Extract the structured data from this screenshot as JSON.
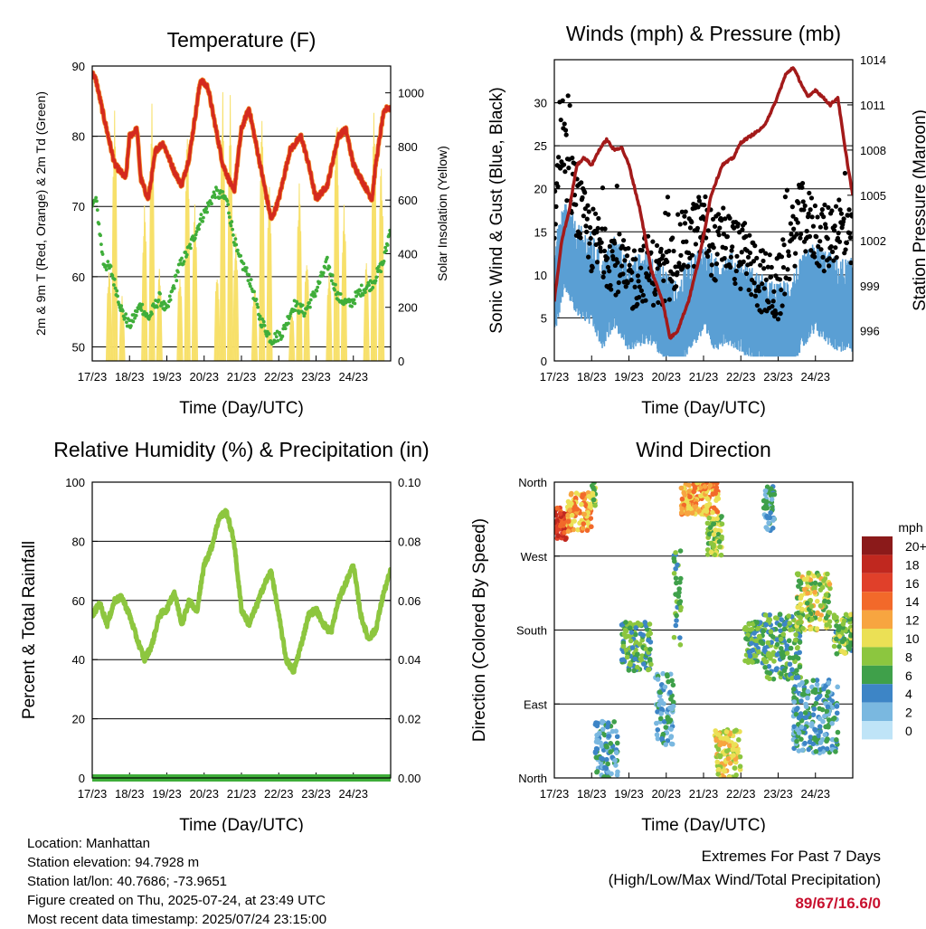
{
  "x_ticks": [
    "17/23",
    "18/23",
    "19/23",
    "20/23",
    "21/23",
    "22/23",
    "23/23",
    "24/23"
  ],
  "x_label": "Time (Day/UTC)",
  "chart_data": [
    {
      "type": "line",
      "title": "Temperature (F)",
      "xlabel": "Time (Day/UTC)",
      "ylabel": "2m & 9m T (Red, Orange) & 2m Td (Green)",
      "y2label": "Solar Insolation (Yellow)",
      "ylim": [
        48,
        90
      ],
      "y_ticks": [
        50,
        60,
        70,
        80,
        90
      ],
      "y2lim": [
        0,
        1100
      ],
      "y2_ticks": [
        0,
        200,
        400,
        600,
        800,
        1000
      ],
      "x_ticks": [
        "17/23",
        "18/23",
        "19/23",
        "20/23",
        "21/23",
        "22/23",
        "23/23",
        "24/23"
      ],
      "grid": true,
      "colors": {
        "temp": "#d42a1e",
        "temp9m": "#f28c28",
        "dewpoint": "#3fae3a",
        "solar": "#f7e06a"
      },
      "series": [
        {
          "name": "2m T",
          "x": [
            0,
            0.1,
            0.3,
            0.6,
            0.9,
            1.0,
            1.2,
            1.3,
            1.5,
            1.7,
            1.9,
            2.2,
            2.4,
            2.6,
            2.9,
            3.1,
            3.5,
            3.8,
            4.0,
            4.2,
            4.5,
            4.8,
            5.0,
            5.3,
            5.6,
            5.8,
            6.0,
            6.3,
            6.6,
            6.8,
            7.0,
            7.3,
            7.5,
            7.6,
            7.8,
            7.9,
            8.0
          ],
          "values": [
            89,
            88,
            83,
            76,
            74,
            80,
            81,
            74,
            71,
            78,
            79,
            75,
            73,
            77,
            88,
            87,
            76,
            72,
            81,
            84,
            76,
            68,
            71,
            78,
            80,
            76,
            71,
            73,
            80,
            81,
            76,
            73,
            71,
            76,
            83,
            84,
            84
          ]
        },
        {
          "name": "2m Td",
          "x": [
            0,
            0.1,
            0.3,
            0.5,
            0.8,
            1.0,
            1.3,
            1.5,
            1.8,
            2.0,
            2.3,
            2.6,
            2.9,
            3.1,
            3.3,
            3.6,
            3.9,
            4.2,
            4.5,
            4.8,
            5.1,
            5.4,
            5.7,
            6.0,
            6.3,
            6.6,
            6.9,
            7.2,
            7.5,
            7.8,
            8.0
          ],
          "values": [
            70,
            71,
            62,
            61,
            55,
            53,
            56,
            54,
            57,
            55,
            61,
            64,
            68,
            70,
            72,
            71,
            63,
            60,
            54,
            51,
            52,
            56,
            55,
            58,
            62,
            57,
            56,
            58,
            59,
            62,
            67
          ]
        },
        {
          "name": "Solar Insolation",
          "axis": "y2",
          "peaks_x": [
            0.45,
            0.6,
            0.8,
            1.4,
            1.6,
            1.8,
            2.35,
            2.55,
            2.75,
            3.35,
            3.5,
            3.7,
            3.85,
            4.35,
            4.55,
            4.75,
            5.35,
            5.55,
            5.75,
            6.35,
            6.55,
            6.75,
            7.35,
            7.55,
            7.75
          ],
          "peaks_values": [
            350,
            950,
            250,
            600,
            1000,
            350,
            350,
            900,
            600,
            350,
            1050,
            1000,
            500,
            300,
            950,
            700,
            200,
            700,
            400,
            350,
            1000,
            600,
            400,
            950,
            800
          ]
        }
      ]
    },
    {
      "type": "scatter",
      "title": "Winds (mph) & Pressure (mb)",
      "xlabel": "Time (Day/UTC)",
      "ylabel": "Sonic Wind & Gust (Blue, Black)",
      "y2label": "Station Pressure (Maroon)",
      "ylim": [
        0,
        35
      ],
      "y_ticks": [
        0,
        5,
        10,
        15,
        20,
        25,
        30
      ],
      "y2lim": [
        994,
        1014
      ],
      "y2_ticks": [
        996,
        999,
        1002,
        1005,
        1008,
        1011,
        1014
      ],
      "x_ticks": [
        "17/23",
        "18/23",
        "19/23",
        "20/23",
        "21/23",
        "22/23",
        "23/23",
        "24/23"
      ],
      "grid": true,
      "colors": {
        "wind": "#5a9fd4",
        "gust": "#000000",
        "pressure": "#a31a1a"
      },
      "series": [
        {
          "name": "Sonic Wind",
          "x": [
            0,
            0.3,
            0.6,
            1.0,
            1.3,
            1.6,
            2.0,
            2.5,
            3.0,
            3.3,
            3.6,
            4.0,
            4.3,
            4.6,
            5.0,
            5.3,
            5.6,
            6.0,
            6.3,
            6.6,
            7.0,
            7.3,
            7.6,
            8.0
          ],
          "values": [
            8,
            13,
            10,
            9,
            6,
            9,
            6,
            7,
            5,
            3,
            6,
            8,
            6,
            7,
            6,
            5,
            4,
            3,
            4,
            6,
            8,
            7,
            6,
            6
          ]
        },
        {
          "name": "Gust",
          "x": [
            0,
            0.2,
            0.4,
            0.7,
            1.0,
            1.3,
            1.6,
            2.0,
            2.4,
            2.8,
            3.0,
            3.3,
            3.6,
            4.0,
            4.3,
            4.6,
            5.0,
            5.3,
            5.6,
            6.0,
            6.3,
            6.6,
            7.0,
            7.3,
            7.6,
            8.0
          ],
          "values": [
            17,
            26,
            21,
            17,
            14,
            13,
            12,
            9,
            11,
            10,
            9,
            13,
            14,
            16,
            13,
            14,
            12,
            11,
            9,
            8,
            13,
            17,
            15,
            14,
            16,
            13
          ]
        },
        {
          "name": "Station Pressure",
          "axis": "y2",
          "x": [
            0,
            0.2,
            0.4,
            0.6,
            0.8,
            1.0,
            1.2,
            1.4,
            1.6,
            1.8,
            2.0,
            2.3,
            2.6,
            2.9,
            3.1,
            3.3,
            3.6,
            3.9,
            4.2,
            4.5,
            4.8,
            5.0,
            5.3,
            5.6,
            5.9,
            6.2,
            6.4,
            6.6,
            6.8,
            7.0,
            7.2,
            7.4,
            7.6,
            7.8,
            8.0
          ],
          "values": [
            998,
            1002,
            1004,
            1007,
            1007.5,
            1007,
            1008,
            1008.7,
            1008,
            1008.2,
            1007,
            1004,
            1000,
            998,
            995.5,
            996,
            998,
            1001,
            1005,
            1007,
            1007.5,
            1008.5,
            1009,
            1009.5,
            1011,
            1013,
            1013.5,
            1012.5,
            1011.5,
            1012,
            1011.5,
            1011,
            1011.5,
            1008,
            1005
          ]
        }
      ]
    },
    {
      "type": "line",
      "title": "Relative Humidity (%) & Precipitation (in)",
      "xlabel": "Time (Day/UTC)",
      "ylabel": "Percent & Total Rainfall",
      "ylim": [
        0,
        100
      ],
      "y_ticks": [
        0,
        20,
        40,
        60,
        80,
        100
      ],
      "y2lim": [
        0,
        0.1
      ],
      "y2_ticks": [
        "0.00",
        "0.02",
        "0.04",
        "0.06",
        "0.08",
        "0.10"
      ],
      "x_ticks": [
        "17/23",
        "18/23",
        "19/23",
        "20/23",
        "21/23",
        "22/23",
        "23/23",
        "24/23"
      ],
      "grid": true,
      "colors": {
        "rh": "#8dc63f",
        "precip": "#3fae3a"
      },
      "series": [
        {
          "name": "Relative Humidity",
          "x": [
            0,
            0.2,
            0.4,
            0.6,
            0.8,
            1.0,
            1.2,
            1.4,
            1.6,
            1.8,
            2.0,
            2.2,
            2.4,
            2.6,
            2.8,
            3.0,
            3.2,
            3.4,
            3.6,
            3.8,
            4.0,
            4.2,
            4.4,
            4.6,
            4.8,
            5.0,
            5.2,
            5.4,
            5.6,
            5.8,
            6.0,
            6.2,
            6.4,
            6.6,
            6.8,
            7.0,
            7.2,
            7.4,
            7.6,
            7.8,
            8.0
          ],
          "values": [
            55,
            59,
            52,
            60,
            61,
            55,
            47,
            40,
            45,
            55,
            57,
            63,
            52,
            60,
            56,
            72,
            78,
            88,
            90,
            80,
            57,
            52,
            58,
            65,
            70,
            55,
            40,
            36,
            45,
            55,
            57,
            52,
            49,
            60,
            66,
            72,
            55,
            47,
            50,
            62,
            70
          ]
        },
        {
          "name": "Total Precipitation",
          "axis": "y2",
          "x": [
            0,
            8
          ],
          "values": [
            0,
            0
          ]
        }
      ]
    },
    {
      "type": "scatter",
      "title": "Wind Direction",
      "xlabel": "Time (Day/UTC)",
      "ylabel": "Direction (Colored By Speed)",
      "ylim": [
        0,
        360
      ],
      "y_ticks": [
        "North",
        "East",
        "South",
        "West",
        "North"
      ],
      "x_ticks": [
        "17/23",
        "18/23",
        "19/23",
        "20/23",
        "21/23",
        "22/23",
        "23/23",
        "24/23"
      ],
      "legend_title": "mph",
      "legend_labels": [
        "20+",
        "18",
        "16",
        "14",
        "12",
        "10",
        "8",
        "6",
        "4",
        "2",
        "0"
      ],
      "legend_colors": [
        "#8b1a1a",
        "#c0281f",
        "#e0402a",
        "#f2692a",
        "#f7a540",
        "#ebe055",
        "#8cc63f",
        "#3fa04a",
        "#3d85c6",
        "#7ab8e0",
        "#bfe4f7"
      ],
      "legend_position": "right",
      "grid": true,
      "clusters": [
        {
          "x0": 0.0,
          "x1": 0.35,
          "dir0": 290,
          "dir1": 330,
          "speed": 16
        },
        {
          "x0": 0.35,
          "x1": 1.0,
          "dir0": 300,
          "dir1": 350,
          "speed": 12
        },
        {
          "x0": 1.0,
          "x1": 1.1,
          "dir0": 330,
          "dir1": 360,
          "speed": 8
        },
        {
          "x0": 1.1,
          "x1": 1.7,
          "dir0": 0,
          "dir1": 70,
          "speed": 4
        },
        {
          "x0": 1.8,
          "x1": 2.6,
          "dir0": 130,
          "dir1": 190,
          "speed": 6
        },
        {
          "x0": 2.7,
          "x1": 3.2,
          "dir0": 40,
          "dir1": 130,
          "speed": 4
        },
        {
          "x0": 3.2,
          "x1": 3.4,
          "dir0": 160,
          "dir1": 280,
          "speed": 6
        },
        {
          "x0": 3.4,
          "x1": 4.4,
          "dir0": 320,
          "dir1": 360,
          "speed": 12
        },
        {
          "x0": 4.1,
          "x1": 4.5,
          "dir0": 270,
          "dir1": 320,
          "speed": 8
        },
        {
          "x0": 4.3,
          "x1": 5.0,
          "dir0": 0,
          "dir1": 60,
          "speed": 10
        },
        {
          "x0": 5.1,
          "x1": 5.6,
          "dir0": 140,
          "dir1": 190,
          "speed": 6
        },
        {
          "x0": 5.6,
          "x1": 5.9,
          "dir0": 300,
          "dir1": 355,
          "speed": 4
        },
        {
          "x0": 5.6,
          "x1": 6.6,
          "dir0": 120,
          "dir1": 200,
          "speed": 6
        },
        {
          "x0": 6.5,
          "x1": 7.4,
          "dir0": 180,
          "dir1": 250,
          "speed": 9
        },
        {
          "x0": 6.4,
          "x1": 7.6,
          "dir0": 30,
          "dir1": 120,
          "speed": 4
        },
        {
          "x0": 7.5,
          "x1": 8.0,
          "dir0": 150,
          "dir1": 200,
          "speed": 7
        }
      ]
    }
  ],
  "info": {
    "location": "Location: Manhattan",
    "elevation": "Station elevation: 94.7928 m",
    "latlon": "Station lat/lon: 40.7686; -73.9651",
    "created": "Figure created on Thu, 2025-07-24, at 23:49 UTC",
    "recent": "Most recent data timestamp: 2025/07/24 23:15:00"
  },
  "extremes": {
    "title": "Extremes For Past 7 Days",
    "subtitle": "(High/Low/Max Wind/Total Precipitation)",
    "values": "89/67/16.6/0"
  }
}
